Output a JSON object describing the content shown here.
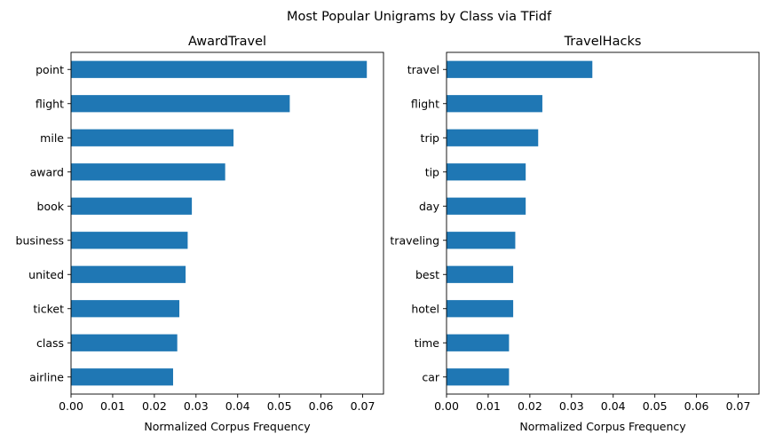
{
  "figure": {
    "suptitle": "Most Popular Unigrams by Class via TFidf"
  },
  "chart_data": [
    {
      "type": "bar",
      "orientation": "horizontal",
      "title": "AwardTravel",
      "xlabel": "Normalized Corpus Frequency",
      "ylabel": "",
      "categories": [
        "point",
        "flight",
        "mile",
        "award",
        "book",
        "business",
        "united",
        "ticket",
        "class",
        "airline"
      ],
      "values": [
        0.071,
        0.0525,
        0.039,
        0.037,
        0.029,
        0.028,
        0.0275,
        0.026,
        0.0255,
        0.0245
      ],
      "xlim": [
        0,
        0.075
      ],
      "xticks": [
        "0.00",
        "0.01",
        "0.02",
        "0.03",
        "0.04",
        "0.05",
        "0.06",
        "0.07"
      ],
      "grid": false,
      "bar_color": "#1f77b4"
    },
    {
      "type": "bar",
      "orientation": "horizontal",
      "title": "TravelHacks",
      "xlabel": "Normalized Corpus Frequency",
      "ylabel": "",
      "categories": [
        "travel",
        "flight",
        "trip",
        "tip",
        "day",
        "traveling",
        "best",
        "hotel",
        "time",
        "car"
      ],
      "values": [
        0.035,
        0.023,
        0.022,
        0.019,
        0.019,
        0.0165,
        0.016,
        0.016,
        0.015,
        0.015
      ],
      "xlim": [
        0,
        0.075
      ],
      "xticks": [
        "0.00",
        "0.01",
        "0.02",
        "0.03",
        "0.04",
        "0.05",
        "0.06",
        "0.07"
      ],
      "grid": false,
      "bar_color": "#1f77b4"
    }
  ]
}
